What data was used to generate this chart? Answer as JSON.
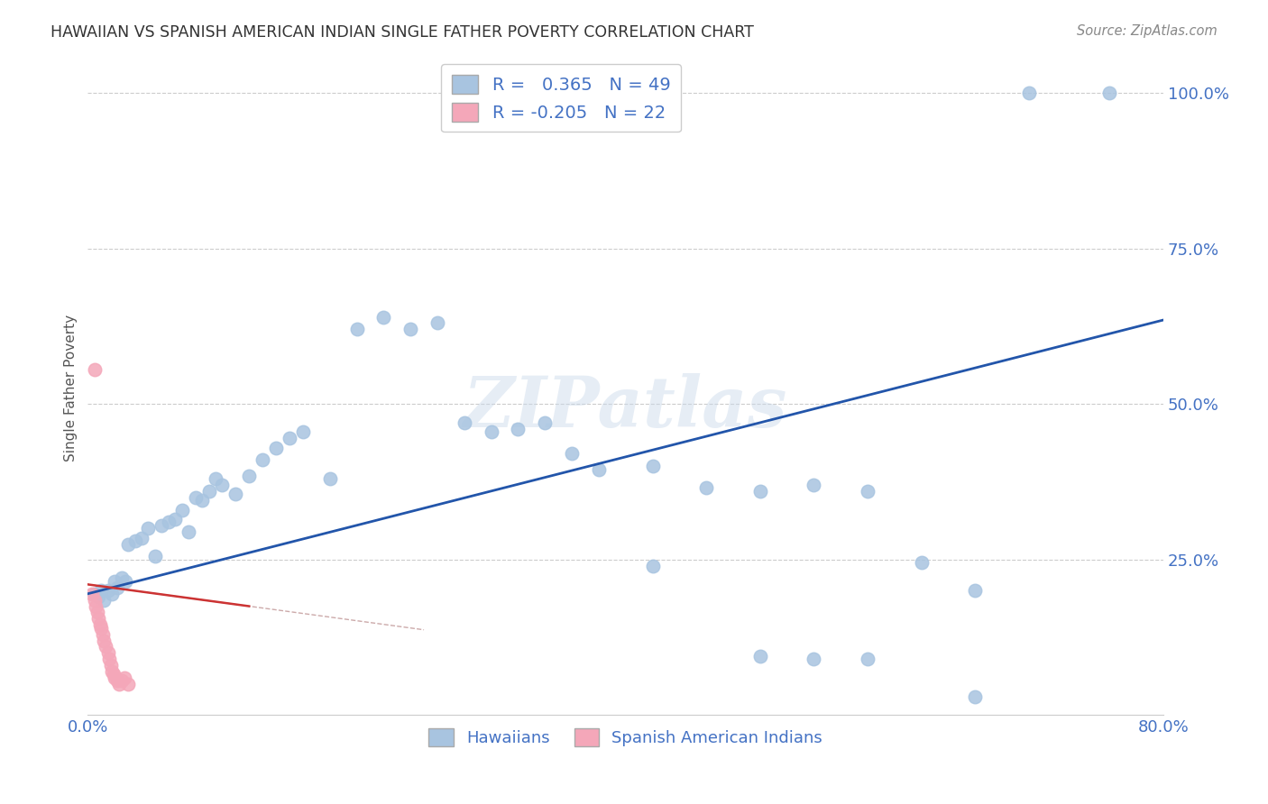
{
  "title": "HAWAIIAN VS SPANISH AMERICAN INDIAN SINGLE FATHER POVERTY CORRELATION CHART",
  "source": "Source: ZipAtlas.com",
  "ylabel": "Single Father Poverty",
  "watermark": "ZIPatlas",
  "xlim": [
    0.0,
    0.8
  ],
  "ylim": [
    0.0,
    1.05
  ],
  "blue_R": 0.365,
  "blue_N": 49,
  "pink_R": -0.205,
  "pink_N": 22,
  "blue_color": "#a8c4e0",
  "pink_color": "#f4a7b9",
  "line_blue_color": "#2255aa",
  "line_pink_color": "#cc3333",
  "line_pink_dash_color": "#ccaaaa",
  "background_color": "#ffffff",
  "grid_color": "#cccccc",
  "title_color": "#333333",
  "axis_label_color": "#4472c4",
  "legend_text_color": "#4472c4",
  "haw_x": [
    0.005,
    0.008,
    0.01,
    0.012,
    0.015,
    0.018,
    0.02,
    0.022,
    0.025,
    0.028,
    0.03,
    0.035,
    0.04,
    0.045,
    0.05,
    0.055,
    0.06,
    0.065,
    0.07,
    0.075,
    0.08,
    0.085,
    0.09,
    0.095,
    0.1,
    0.11,
    0.12,
    0.13,
    0.14,
    0.15,
    0.16,
    0.18,
    0.2,
    0.22,
    0.24,
    0.26,
    0.28,
    0.3,
    0.32,
    0.34,
    0.36,
    0.38,
    0.42,
    0.46,
    0.5,
    0.54,
    0.58,
    0.62,
    0.66
  ],
  "haw_y": [
    0.195,
    0.19,
    0.2,
    0.185,
    0.2,
    0.195,
    0.215,
    0.205,
    0.22,
    0.215,
    0.275,
    0.28,
    0.285,
    0.3,
    0.255,
    0.305,
    0.31,
    0.315,
    0.33,
    0.295,
    0.35,
    0.345,
    0.36,
    0.38,
    0.37,
    0.355,
    0.385,
    0.41,
    0.43,
    0.445,
    0.455,
    0.38,
    0.62,
    0.64,
    0.62,
    0.63,
    0.47,
    0.455,
    0.46,
    0.47,
    0.42,
    0.395,
    0.4,
    0.365,
    0.36,
    0.37,
    0.36,
    0.245,
    0.2
  ],
  "haw_x2": [
    0.42,
    0.5,
    0.54,
    0.58,
    0.66,
    0.7,
    0.76
  ],
  "haw_y2": [
    0.24,
    0.095,
    0.09,
    0.09,
    0.03,
    1.0,
    1.0
  ],
  "spa_x": [
    0.003,
    0.005,
    0.006,
    0.007,
    0.008,
    0.009,
    0.01,
    0.011,
    0.012,
    0.013,
    0.015,
    0.016,
    0.017,
    0.018,
    0.019,
    0.02,
    0.022,
    0.023,
    0.025,
    0.027,
    0.03,
    0.005
  ],
  "spa_y": [
    0.195,
    0.185,
    0.175,
    0.165,
    0.155,
    0.145,
    0.14,
    0.13,
    0.12,
    0.11,
    0.1,
    0.09,
    0.08,
    0.07,
    0.065,
    0.06,
    0.055,
    0.05,
    0.055,
    0.06,
    0.05,
    0.555
  ],
  "legend_hawaiians": "Hawaiians",
  "legend_spanish": "Spanish American Indians"
}
